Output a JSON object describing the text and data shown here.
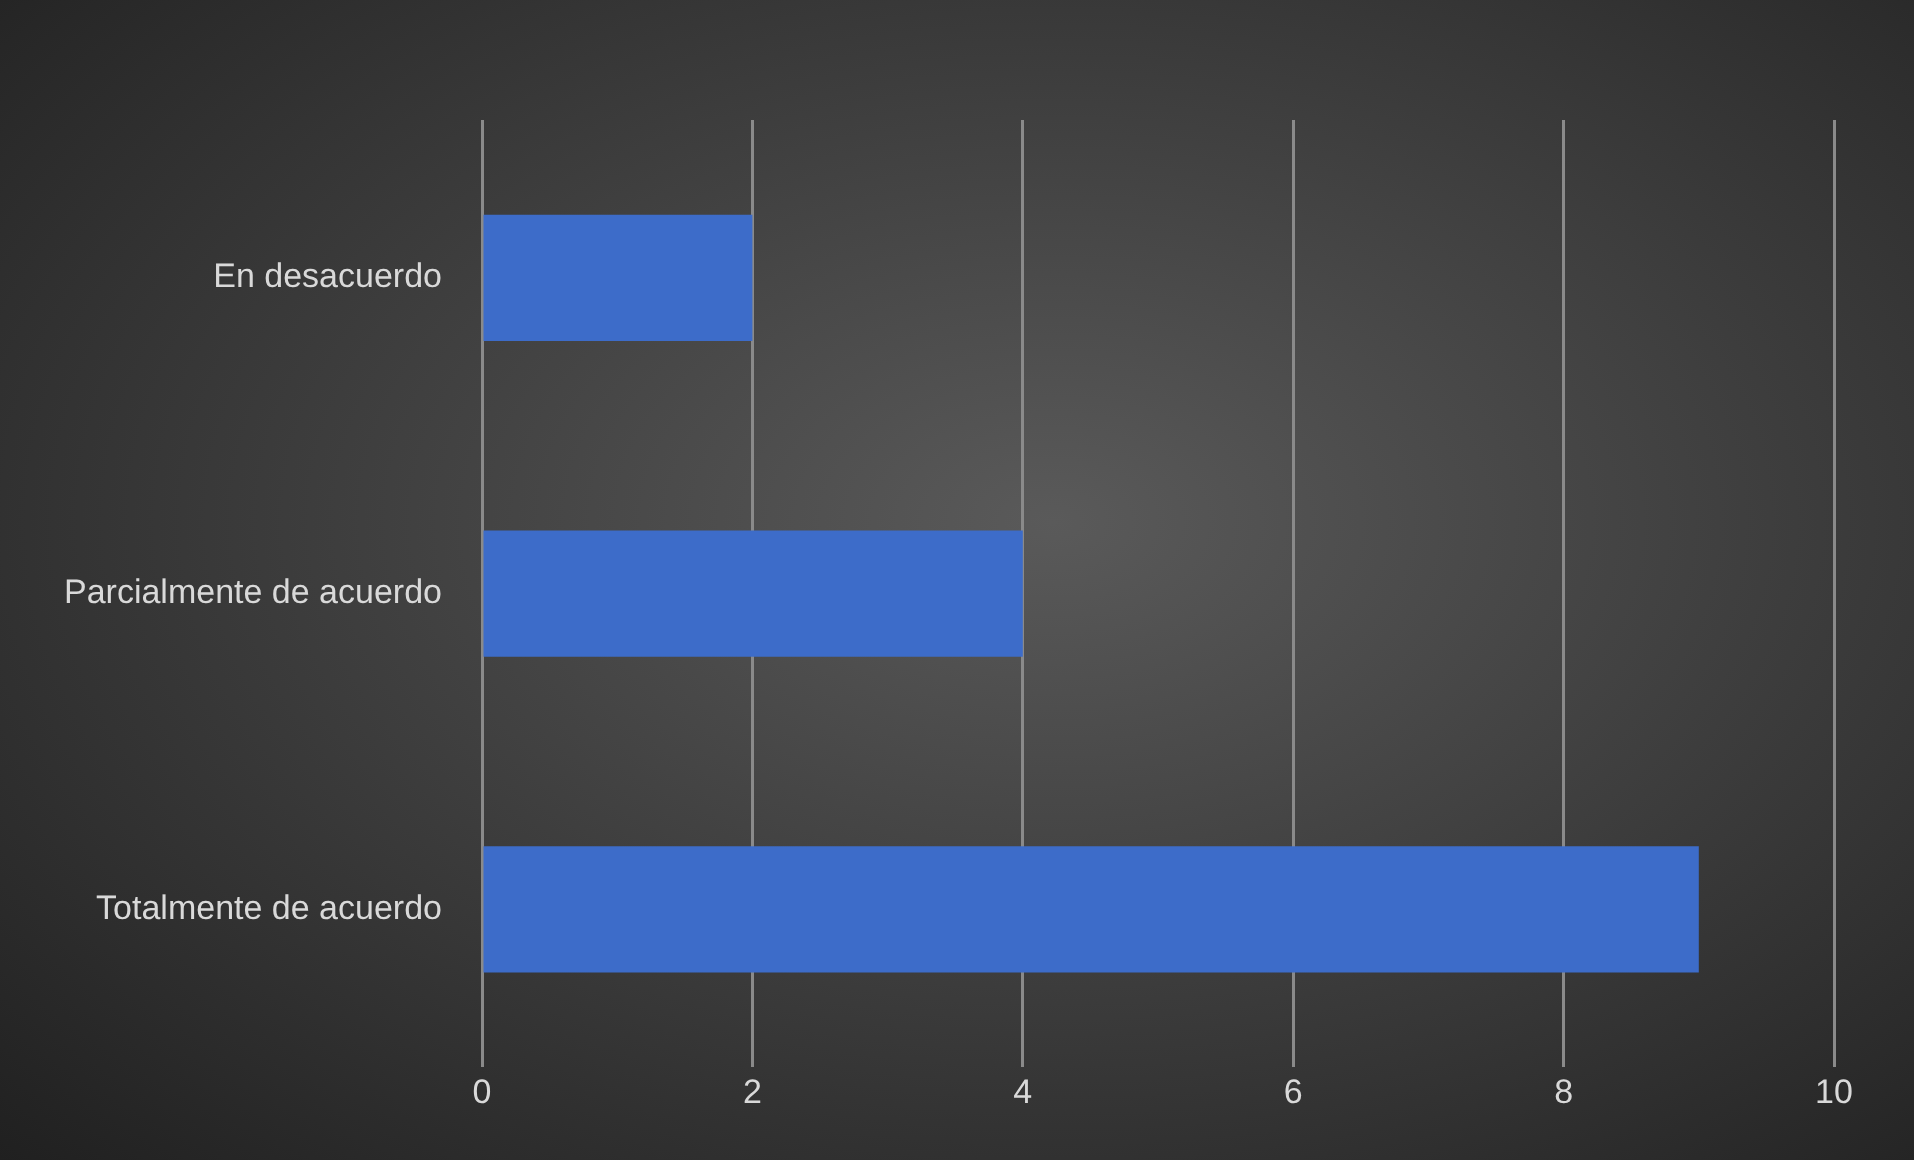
{
  "chart_data": {
    "type": "bar",
    "orientation": "horizontal",
    "categories": [
      "En desacuerdo",
      "Parcialmente de acuerdo",
      "Totalmente de acuerdo"
    ],
    "values": [
      2,
      4,
      9
    ],
    "color": "#3d6cc9",
    "xlim": [
      0,
      10
    ],
    "xticks": [
      0,
      2,
      4,
      6,
      8,
      10
    ],
    "grid": "x",
    "legend": false
  }
}
